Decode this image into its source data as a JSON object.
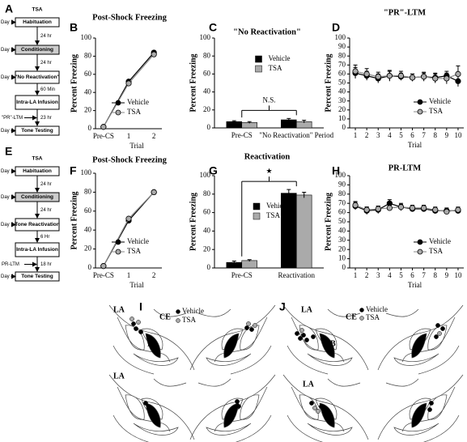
{
  "panels": [
    "A",
    "B",
    "C",
    "D",
    "E",
    "F",
    "G",
    "H",
    "I",
    "J"
  ],
  "flowcharts": [
    {
      "title": "TSA",
      "boxes": [
        "Habituation",
        "Conditioning",
        "\"No Reactivation\"",
        "Intra-LA Infusion",
        "Tone Testing"
      ],
      "days": [
        "Day 1",
        "Day 2",
        "Day 3",
        null,
        "Day 4"
      ],
      "intervals": [
        "24 hr",
        "24 hr",
        "60 Min",
        "23 hr"
      ],
      "interval_labels": [
        null,
        null,
        null,
        "\"PR\"-LTM"
      ]
    },
    {
      "title": "TSA",
      "boxes": [
        "Habituation",
        "Conditioning",
        "Tone Reactivation",
        "Intra-LA Infusion",
        "Tone Testing"
      ],
      "days": [
        "Day 1",
        "Day 2",
        "Day 3",
        null,
        "Day 4"
      ],
      "intervals": [
        "24 hr",
        "24 hr",
        "6 Hr",
        "18 hr"
      ],
      "interval_labels": [
        null,
        null,
        null,
        "PR-LTM"
      ]
    }
  ],
  "histology": [
    {
      "labels": [
        "LA",
        "CE",
        "B",
        "LA"
      ],
      "legend": [
        "Vehicle",
        "TSA"
      ]
    },
    {
      "labels": [
        "LA",
        "CE",
        "B",
        "LA"
      ],
      "legend": [
        "Vehicle",
        "TSA"
      ]
    }
  ],
  "chart_data": [
    {
      "type": "line",
      "title": "Post-Shock Freezing",
      "x_label": "Trial",
      "y_label": "Percent Freezing",
      "categories": [
        "Pre-CS",
        "1",
        "2"
      ],
      "ylim": [
        0,
        100
      ],
      "yticks": [
        0,
        20,
        40,
        60,
        80,
        100
      ],
      "legend": "lower right",
      "series": [
        {
          "name": "Vehicle",
          "color": "#000000",
          "values": [
            2,
            52,
            84
          ]
        },
        {
          "name": "TSA",
          "color": "#aaaaaa",
          "values": [
            2,
            50,
            82
          ]
        }
      ]
    },
    {
      "type": "bar",
      "title": "\"No Reactivation\"",
      "y_label": "Percent Freezing",
      "annotation": "N.S.",
      "categories": [
        "Pre-CS",
        "\"No Reactivation\" Period"
      ],
      "ylim": [
        0,
        100
      ],
      "yticks": [
        0,
        20,
        40,
        60,
        80,
        100
      ],
      "legend": "upper center",
      "series": [
        {
          "name": "Vehicle",
          "color": "#000000",
          "values": [
            7,
            9
          ],
          "errors": [
            1,
            1.5
          ]
        },
        {
          "name": "TSA",
          "color": "#aaaaaa",
          "values": [
            6,
            7
          ],
          "errors": [
            1,
            1.5
          ]
        }
      ]
    },
    {
      "type": "line",
      "title": "\"PR\"-LTM",
      "x_label": "Trial",
      "y_label": "Percent Freezing",
      "x": [
        1,
        2,
        3,
        4,
        5,
        6,
        7,
        8,
        9,
        10
      ],
      "xlim": [
        0.5,
        10.5
      ],
      "xticks": [
        1,
        2,
        3,
        4,
        5,
        6,
        7,
        8,
        9,
        10
      ],
      "ylim": [
        0,
        100
      ],
      "yticks": [
        0,
        10,
        20,
        30,
        40,
        50,
        60,
        70,
        80,
        90,
        100
      ],
      "legend": "lower right",
      "series": [
        {
          "name": "Vehicle",
          "color": "#000000",
          "values": [
            61,
            58,
            55,
            58,
            57,
            56,
            57,
            56,
            58,
            52
          ],
          "errors": [
            6,
            5,
            5,
            5,
            4,
            4,
            4,
            5,
            5,
            6
          ]
        },
        {
          "name": "TSA",
          "color": "#aaaaaa",
          "values": [
            63,
            60,
            57,
            58,
            58,
            56,
            57,
            55,
            55,
            60
          ],
          "errors": [
            7,
            6,
            5,
            6,
            5,
            4,
            5,
            5,
            6,
            9
          ]
        }
      ]
    },
    {
      "type": "line",
      "title": "Post-Shock Freezing",
      "x_label": "Trial",
      "y_label": "Percent Freezing",
      "categories": [
        "Pre-CS",
        "1",
        "2"
      ],
      "ylim": [
        0,
        100
      ],
      "yticks": [
        0,
        20,
        40,
        60,
        80,
        100
      ],
      "legend": "lower right",
      "series": [
        {
          "name": "Vehicle",
          "color": "#000000",
          "values": [
            2,
            50,
            80
          ]
        },
        {
          "name": "TSA",
          "color": "#aaaaaa",
          "values": [
            2,
            52,
            80
          ]
        }
      ]
    },
    {
      "type": "bar",
      "title": "Reactivation",
      "y_label": "Percent Freezing",
      "annotation": "★",
      "categories": [
        "Pre-CS",
        "Reactivation"
      ],
      "ylim": [
        0,
        100
      ],
      "yticks": [
        0,
        20,
        40,
        60,
        80,
        100
      ],
      "legend": "upper left",
      "series": [
        {
          "name": "Vehicle",
          "color": "#000000",
          "values": [
            6,
            81
          ],
          "errors": [
            1.5,
            4
          ]
        },
        {
          "name": "TSA",
          "color": "#aaaaaa",
          "values": [
            8,
            79
          ],
          "errors": [
            1,
            3
          ]
        }
      ]
    },
    {
      "type": "line",
      "title": "PR-LTM",
      "x_label": "Trial",
      "y_label": "Percent Freezing",
      "x": [
        1,
        2,
        3,
        4,
        5,
        6,
        7,
        8,
        9,
        10
      ],
      "xlim": [
        0.5,
        10.5
      ],
      "xticks": [
        1,
        2,
        3,
        4,
        5,
        6,
        7,
        8,
        9,
        10
      ],
      "ylim": [
        0,
        100
      ],
      "yticks": [
        0,
        10,
        20,
        30,
        40,
        50,
        60,
        70,
        80,
        90,
        100
      ],
      "legend": "lower right",
      "series": [
        {
          "name": "Vehicle",
          "color": "#000000",
          "values": [
            67,
            62,
            63,
            70,
            66,
            64,
            64,
            62,
            62,
            62
          ],
          "errors": [
            4,
            4,
            4,
            4,
            4,
            3,
            3,
            3,
            3,
            3
          ]
        },
        {
          "name": "TSA",
          "color": "#aaaaaa",
          "values": [
            68,
            63,
            64,
            65,
            66,
            65,
            65,
            63,
            61,
            63
          ],
          "errors": [
            4,
            3,
            3,
            3,
            3,
            3,
            3,
            3,
            3,
            3
          ]
        }
      ]
    }
  ]
}
